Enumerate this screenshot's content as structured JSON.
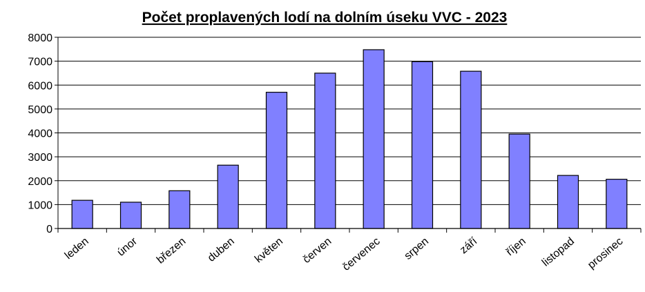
{
  "chart_data": {
    "type": "bar",
    "title": "Počet proplavených lodí na dolním úseku VVC - 2023",
    "categories": [
      "leden",
      "únor",
      "březen",
      "duben",
      "květen",
      "červen",
      "červenec",
      "srpen",
      "září",
      "říjen",
      "listopad",
      "prosinec"
    ],
    "values": [
      1180,
      1100,
      1580,
      2650,
      5700,
      6500,
      7480,
      6980,
      6580,
      3950,
      2220,
      2060
    ],
    "color": "#8080ff",
    "ylim": [
      0,
      8000
    ],
    "yticks": [
      0,
      1000,
      2000,
      3000,
      4000,
      5000,
      6000,
      7000,
      8000
    ],
    "grid": true
  }
}
